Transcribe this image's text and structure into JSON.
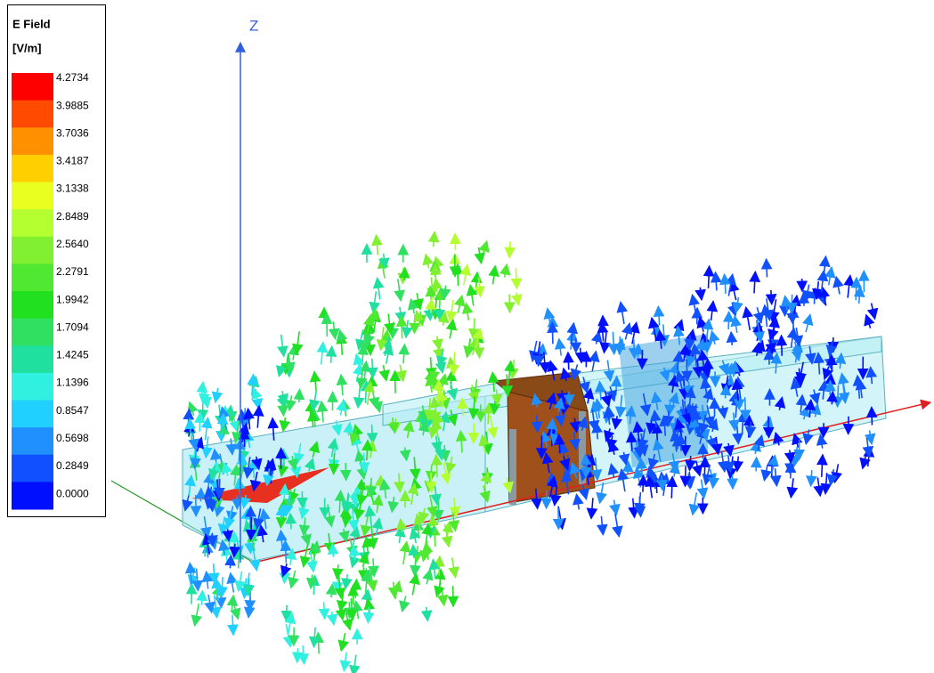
{
  "legend": {
    "title": "E Field",
    "unit": "[V/m]",
    "labels": [
      "4.2734",
      "3.9885",
      "3.7036",
      "3.4187",
      "3.1338",
      "2.8489",
      "2.5640",
      "2.2791",
      "1.9942",
      "1.7094",
      "1.4245",
      "1.1396",
      "0.8547",
      "0.5698",
      "0.2849",
      "0.0000"
    ],
    "colors": [
      "#ff0000",
      "#ff4a00",
      "#ff9000",
      "#ffd000",
      "#e8ff20",
      "#b4ff30",
      "#80f030",
      "#50e830",
      "#20e020",
      "#30e060",
      "#20e0a0",
      "#30f0e0",
      "#20d0ff",
      "#2090ff",
      "#1050ff",
      "#0010ff"
    ]
  },
  "axes": {
    "z": "Z"
  }
}
